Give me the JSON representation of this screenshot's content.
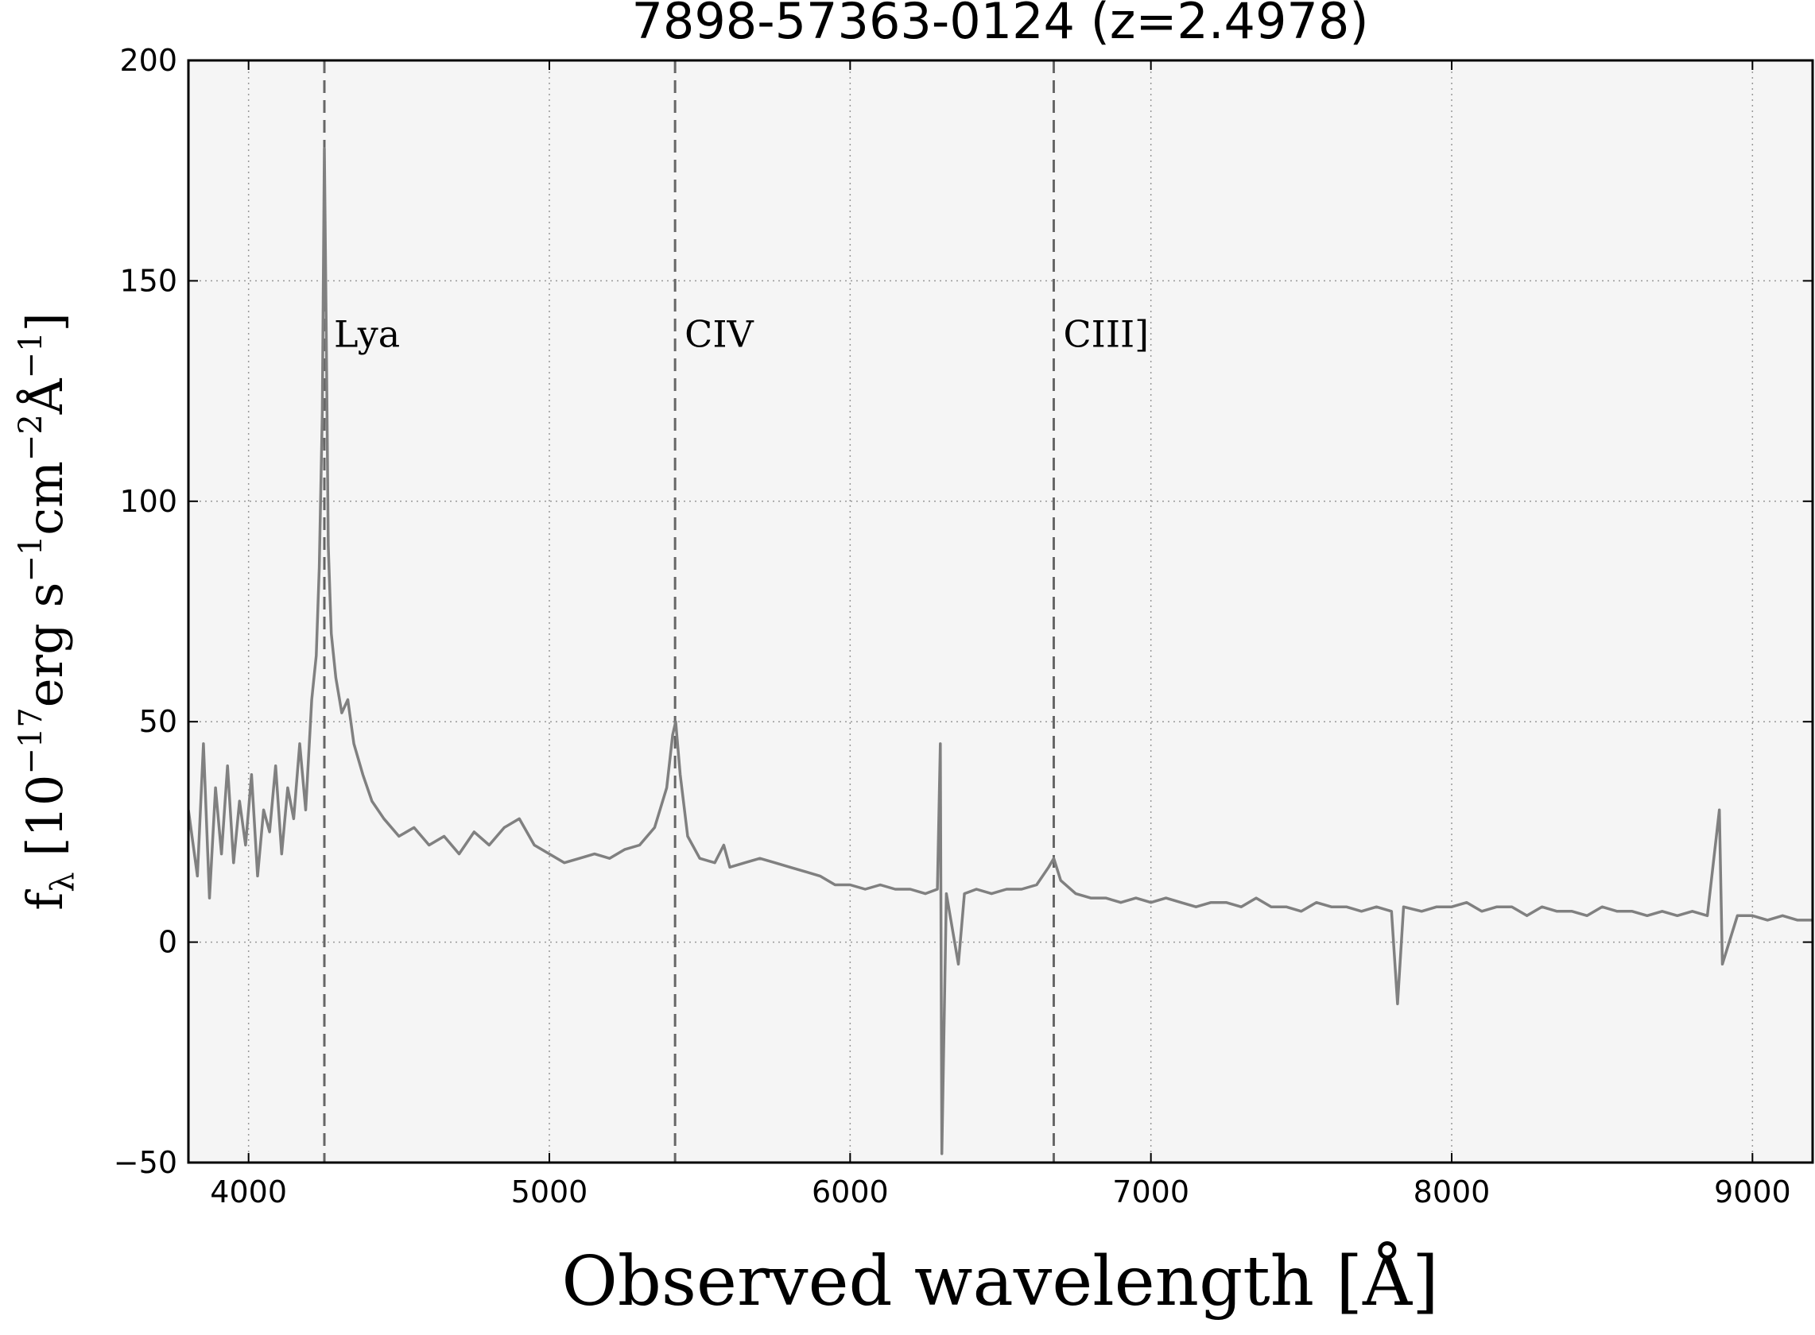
{
  "chart_data": {
    "type": "line",
    "title": "7898-57363-0124 (z=2.4978)",
    "xlabel": "Observed wavelength [Å]",
    "ylabel": [
      "f",
      "λ",
      " [10",
      "−17",
      "erg s",
      "−1",
      "cm",
      "−2",
      "Å",
      "−1",
      "]"
    ],
    "xlim": [
      3800,
      9200
    ],
    "ylim": [
      -50,
      200
    ],
    "xticks": [
      4000,
      5000,
      6000,
      7000,
      8000,
      9000
    ],
    "yticks": [
      {
        "value": -50,
        "label": "−50"
      },
      0,
      50,
      100,
      150,
      200
    ],
    "grid": true,
    "background": "#f5f5f5",
    "annotations": [
      {
        "text": "Lya",
        "x": 4252
      },
      {
        "text": "CIV",
        "x": 5418
      },
      {
        "text": "CIII]",
        "x": 6677
      }
    ],
    "x": [
      3800,
      3830,
      3850,
      3870,
      3890,
      3910,
      3930,
      3950,
      3970,
      3990,
      4010,
      4030,
      4050,
      4070,
      4090,
      4110,
      4130,
      4150,
      4170,
      4190,
      4210,
      4225,
      4235,
      4245,
      4252,
      4258,
      4265,
      4275,
      4290,
      4310,
      4330,
      4350,
      4380,
      4410,
      4450,
      4500,
      4550,
      4600,
      4650,
      4700,
      4750,
      4800,
      4850,
      4900,
      4950,
      5000,
      5050,
      5100,
      5150,
      5200,
      5250,
      5300,
      5350,
      5390,
      5410,
      5420,
      5435,
      5460,
      5500,
      5550,
      5580,
      5600,
      5650,
      5700,
      5750,
      5800,
      5850,
      5900,
      5950,
      6000,
      6050,
      6100,
      6150,
      6200,
      6250,
      6290,
      6300,
      6305,
      6320,
      6360,
      6380,
      6420,
      6470,
      6520,
      6570,
      6620,
      6660,
      6677,
      6700,
      6750,
      6800,
      6850,
      6900,
      6950,
      7000,
      7050,
      7100,
      7150,
      7200,
      7250,
      7300,
      7350,
      7400,
      7450,
      7500,
      7550,
      7600,
      7650,
      7700,
      7750,
      7800,
      7820,
      7840,
      7900,
      7950,
      8000,
      8050,
      8100,
      8150,
      8200,
      8250,
      8300,
      8350,
      8400,
      8450,
      8500,
      8550,
      8600,
      8650,
      8700,
      8750,
      8800,
      8850,
      8890,
      8900,
      8950,
      9000,
      9050,
      9100,
      9150,
      9200
    ],
    "series": [
      {
        "color": "#808080",
        "values": [
          30,
          15,
          45,
          10,
          35,
          20,
          40,
          18,
          32,
          22,
          38,
          15,
          30,
          25,
          40,
          20,
          35,
          28,
          45,
          30,
          55,
          65,
          85,
          120,
          180,
          140,
          90,
          70,
          60,
          52,
          55,
          45,
          38,
          32,
          28,
          24,
          26,
          22,
          24,
          20,
          25,
          22,
          26,
          28,
          22,
          20,
          18,
          19,
          20,
          19,
          21,
          22,
          26,
          35,
          47,
          50,
          38,
          24,
          19,
          18,
          22,
          17,
          18,
          19,
          18,
          17,
          16,
          15,
          13,
          13,
          12,
          13,
          12,
          12,
          11,
          12,
          45,
          -48,
          11,
          -5,
          11,
          12,
          11,
          12,
          12,
          13,
          17,
          19,
          14,
          11,
          10,
          10,
          9,
          10,
          9,
          10,
          9,
          8,
          9,
          9,
          8,
          10,
          8,
          8,
          7,
          9,
          8,
          8,
          7,
          8,
          7,
          -14,
          8,
          7,
          8,
          8,
          9,
          7,
          8,
          8,
          6,
          8,
          7,
          7,
          6,
          8,
          7,
          7,
          6,
          7,
          6,
          7,
          6,
          30,
          -5,
          6,
          6,
          5,
          6,
          5,
          5
        ]
      }
    ]
  }
}
